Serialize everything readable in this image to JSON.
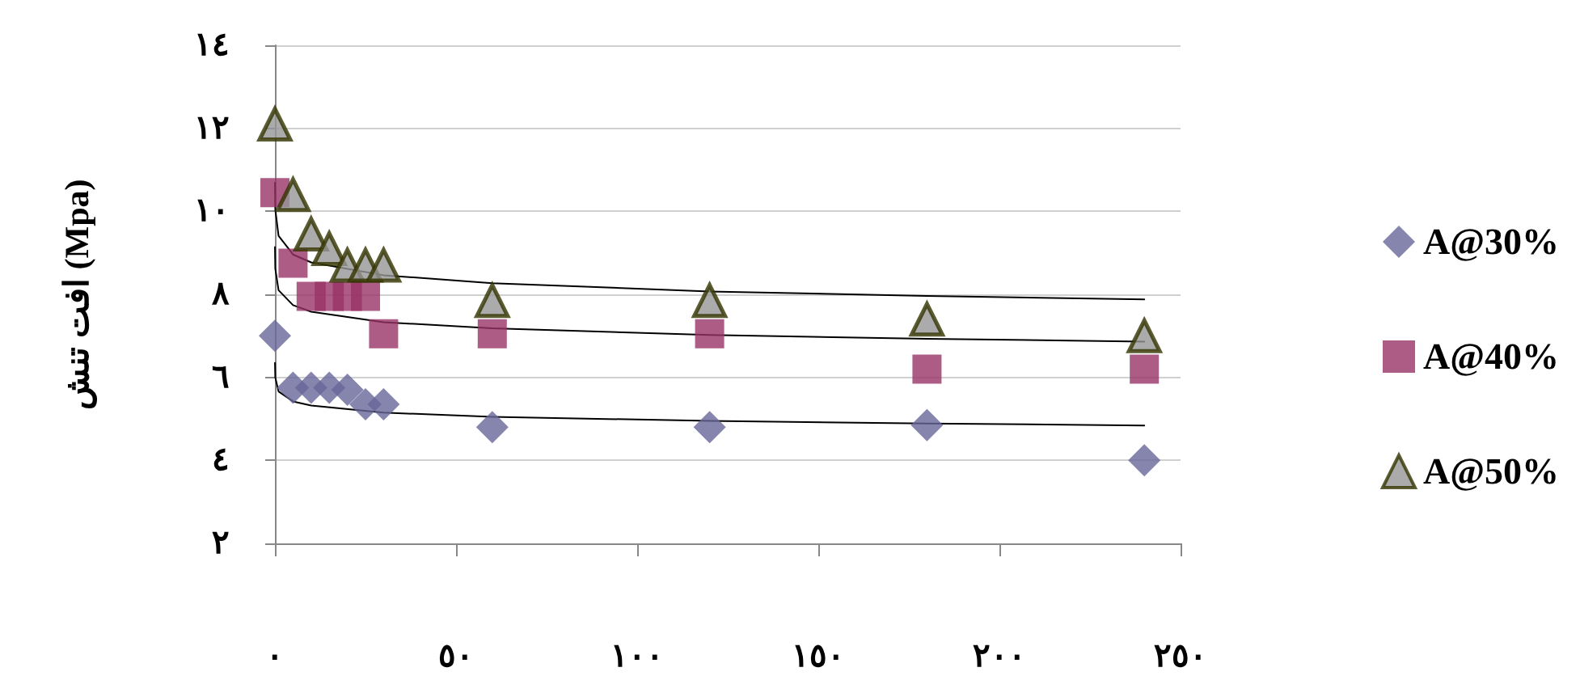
{
  "chart_data": {
    "type": "scatter",
    "ylabel": "افت تنش (Mpa)",
    "xlim": [
      0,
      250
    ],
    "xticks": [
      {
        "value": 0,
        "label": "٠"
      },
      {
        "value": 50,
        "label": "٥٠"
      },
      {
        "value": 100,
        "label": "١٠٠"
      },
      {
        "value": 150,
        "label": "١٥٠"
      },
      {
        "value": 200,
        "label": "٢٠٠"
      },
      {
        "value": 250,
        "label": "٢٥٠"
      }
    ],
    "ylim": [
      2,
      14
    ],
    "yticks": [
      {
        "value": 2,
        "label": "٢"
      },
      {
        "value": 4,
        "label": "٤"
      },
      {
        "value": 6,
        "label": "٦"
      },
      {
        "value": 8,
        "label": "٨"
      },
      {
        "value": 10,
        "label": "١٠"
      },
      {
        "value": 12,
        "label": "١٢"
      },
      {
        "value": 14,
        "label": "١٤"
      }
    ],
    "grid": "y",
    "legend": "right",
    "series": [
      {
        "name": "A@30%",
        "color": "#666699",
        "marker": "diamond",
        "x": [
          0,
          5,
          10,
          15,
          20,
          25,
          30,
          60,
          120,
          180,
          240
        ],
        "values": [
          7.0,
          5.75,
          5.75,
          5.75,
          5.7,
          5.35,
          5.35,
          4.8,
          4.8,
          4.85,
          4.0
        ]
      },
      {
        "name": "A@40%",
        "color": "#993366",
        "marker": "square",
        "x": [
          0,
          5,
          10,
          15,
          20,
          25,
          30,
          60,
          120,
          180,
          240
        ],
        "values": [
          10.45,
          8.75,
          7.95,
          7.95,
          7.95,
          7.95,
          7.05,
          7.05,
          7.05,
          6.2,
          6.2
        ]
      },
      {
        "name": "A@50%",
        "color": "#969696",
        "marker": "triangle",
        "x": [
          0,
          5,
          10,
          15,
          20,
          25,
          30,
          60,
          120,
          180,
          240
        ],
        "values": [
          12.1,
          10.4,
          9.45,
          9.1,
          8.7,
          8.7,
          8.7,
          7.85,
          7.85,
          7.4,
          7.0
        ]
      },
      {
        "type": "line",
        "color": "#000000",
        "marker": "none",
        "x": [
          0.01,
          0.1,
          1,
          5,
          10,
          30,
          60,
          120,
          180,
          240
        ],
        "values": [
          6.35,
          6.0,
          5.66,
          5.42,
          5.32,
          5.15,
          5.05,
          4.95,
          4.89,
          4.84
        ]
      },
      {
        "type": "line",
        "color": "#000000",
        "marker": "none",
        "x": [
          0.01,
          0.1,
          1,
          5,
          10,
          30,
          60,
          120,
          180,
          240
        ],
        "values": [
          9.14,
          8.62,
          8.1,
          7.74,
          7.58,
          7.33,
          7.18,
          7.02,
          6.93,
          6.86
        ]
      },
      {
        "type": "line",
        "color": "#000000",
        "marker": "none",
        "x": [
          0.01,
          0.1,
          1,
          5,
          10,
          30,
          60,
          120,
          180,
          240
        ],
        "values": [
          10.69,
          10.05,
          9.41,
          8.96,
          8.77,
          8.46,
          8.27,
          8.07,
          7.96,
          7.88
        ]
      }
    ]
  }
}
